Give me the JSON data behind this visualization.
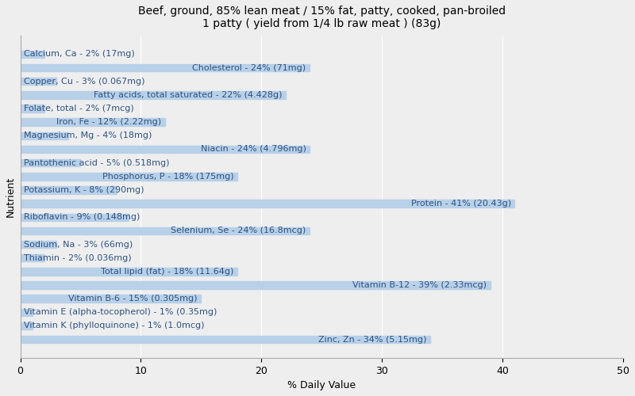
{
  "title": "Beef, ground, 85% lean meat / 15% fat, patty, cooked, pan-broiled\n1 patty ( yield from 1/4 lb raw meat ) (83g)",
  "xlabel": "% Daily Value",
  "ylabel": "Nutrient",
  "nutrients": [
    "Calcium, Ca - 2% (17mg)",
    "Cholesterol - 24% (71mg)",
    "Copper, Cu - 3% (0.067mg)",
    "Fatty acids, total saturated - 22% (4.428g)",
    "Folate, total - 2% (7mcg)",
    "Iron, Fe - 12% (2.22mg)",
    "Magnesium, Mg - 4% (18mg)",
    "Niacin - 24% (4.796mg)",
    "Pantothenic acid - 5% (0.518mg)",
    "Phosphorus, P - 18% (175mg)",
    "Potassium, K - 8% (290mg)",
    "Protein - 41% (20.43g)",
    "Riboflavin - 9% (0.148mg)",
    "Selenium, Se - 24% (16.8mcg)",
    "Sodium, Na - 3% (66mg)",
    "Thiamin - 2% (0.036mg)",
    "Total lipid (fat) - 18% (11.64g)",
    "Vitamin B-12 - 39% (2.33mcg)",
    "Vitamin B-6 - 15% (0.305mg)",
    "Vitamin E (alpha-tocopherol) - 1% (0.35mg)",
    "Vitamin K (phylloquinone) - 1% (1.0mcg)",
    "Zinc, Zn - 34% (5.15mg)"
  ],
  "values": [
    2,
    24,
    3,
    22,
    2,
    12,
    4,
    24,
    5,
    18,
    8,
    41,
    9,
    24,
    3,
    2,
    18,
    39,
    15,
    1,
    1,
    34
  ],
  "bar_color": "#b8d0e8",
  "label_color": "#2c5282",
  "background_color": "#eeeeee",
  "plot_bg_color": "#eeeeee",
  "xlim": [
    0,
    50
  ],
  "title_fontsize": 10,
  "axis_label_fontsize": 9,
  "tick_fontsize": 9,
  "bar_label_fontsize": 8,
  "bar_height": 0.55,
  "label_threshold": 10
}
